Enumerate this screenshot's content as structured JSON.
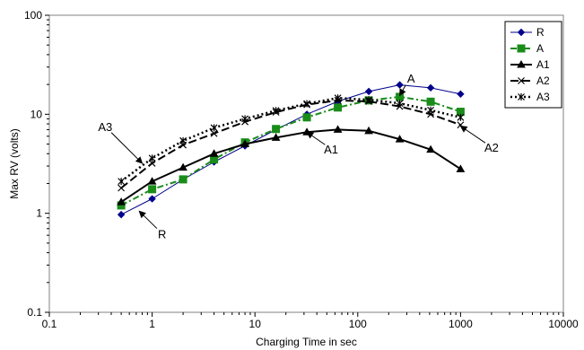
{
  "chart_data": {
    "type": "line",
    "title": "",
    "xlabel": "Charging Time in sec",
    "ylabel": "Max RV (volts)",
    "xscale": "log",
    "yscale": "log",
    "xlim": [
      0.1,
      10000
    ],
    "ylim": [
      0.1,
      100
    ],
    "x_ticks": [
      0.1,
      1,
      10,
      100,
      1000,
      10000
    ],
    "x_tick_labels": [
      "0.1",
      "1",
      "10",
      "100",
      "1000",
      "10000"
    ],
    "y_ticks": [
      0.1,
      1,
      10,
      100
    ],
    "y_tick_labels": [
      "0.1",
      "1",
      "10",
      "100"
    ],
    "grid": false,
    "legend_position": "top-right",
    "series": [
      {
        "name": "R",
        "color": "#00008b",
        "dash": "solid",
        "marker": "diamond",
        "x": [
          0.5,
          1,
          2,
          4,
          8,
          16,
          32,
          64,
          128,
          256,
          512,
          1000
        ],
        "y": [
          0.97,
          1.4,
          2.2,
          3.3,
          4.8,
          7.0,
          10.0,
          13.5,
          17.0,
          19.8,
          18.5,
          16.0
        ]
      },
      {
        "name": "A",
        "color": "#1a8c1a",
        "dash": "dashdot",
        "marker": "square",
        "x": [
          0.5,
          1,
          2,
          4,
          8,
          16,
          32,
          64,
          128,
          256,
          512,
          1000
        ],
        "y": [
          1.2,
          1.75,
          2.2,
          3.5,
          5.2,
          7.1,
          9.3,
          11.7,
          13.8,
          15.0,
          13.4,
          10.6
        ]
      },
      {
        "name": "A1",
        "color": "#000000",
        "dash": "solid",
        "marker": "triangle",
        "x": [
          0.5,
          1,
          2,
          4,
          8,
          16,
          32,
          64,
          128,
          256,
          512,
          1000
        ],
        "y": [
          1.3,
          2.1,
          2.9,
          4.0,
          5.0,
          5.8,
          6.6,
          7.0,
          6.8,
          5.6,
          4.4,
          2.8
        ]
      },
      {
        "name": "A2",
        "color": "#000000",
        "dash": "longdash",
        "marker": "x",
        "x": [
          0.5,
          1,
          2,
          4,
          8,
          16,
          32,
          64,
          128,
          256,
          512,
          1000
        ],
        "y": [
          1.8,
          3.2,
          4.9,
          6.4,
          8.4,
          10.5,
          12.5,
          13.8,
          13.5,
          12.0,
          10.0,
          7.8
        ]
      },
      {
        "name": "A3",
        "color": "#000000",
        "dash": "dotted",
        "marker": "star",
        "x": [
          0.5,
          1,
          2,
          4,
          8,
          16,
          32,
          64,
          128,
          256,
          512,
          1000
        ],
        "y": [
          2.1,
          3.6,
          5.4,
          7.3,
          9.0,
          10.9,
          12.8,
          14.6,
          14.0,
          12.9,
          11.0,
          9.3
        ]
      }
    ],
    "annotations": [
      {
        "text": "A",
        "x": 330,
        "y": 21,
        "target_x": 256,
        "target_y": 15.5
      },
      {
        "text": "A1",
        "x": 55,
        "y": 4.0,
        "target_x": 32,
        "target_y": 6.6
      },
      {
        "text": "A2",
        "x": 2000,
        "y": 4.2,
        "target_x": 1000,
        "target_y": 7.6
      },
      {
        "text": "A3",
        "x": 0.35,
        "y": 6.8,
        "target_x": 0.8,
        "target_y": 3.2
      },
      {
        "text": "R",
        "x": 1.25,
        "y": 0.56,
        "target_x": 0.75,
        "target_y": 1.05
      }
    ]
  }
}
